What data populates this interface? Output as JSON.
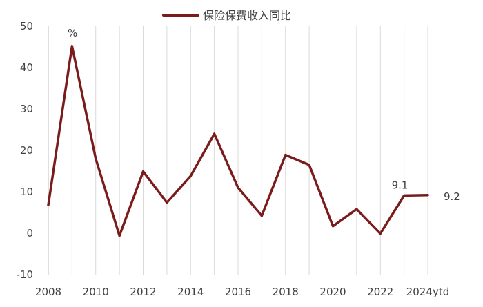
{
  "chart_data": {
    "type": "line",
    "title": "",
    "xlabel": "",
    "ylabel": "",
    "unit_label": "%",
    "legend_position": "top-center",
    "grid": "vertical",
    "ylim": [
      -10,
      50
    ],
    "y_ticks": [
      -10,
      0,
      10,
      20,
      30,
      40,
      50
    ],
    "x": [
      "2008",
      "2009",
      "2010",
      "2011",
      "2012",
      "2013",
      "2014",
      "2015",
      "2016",
      "2017",
      "2018",
      "2019",
      "2020",
      "2021",
      "2022",
      "2023",
      "2024ytd"
    ],
    "x_tick_labels": [
      "2008",
      "",
      "2010",
      "",
      "2012",
      "",
      "2014",
      "",
      "2016",
      "",
      "2018",
      "",
      "2020",
      "",
      "2022",
      "",
      "2024ytd"
    ],
    "series": [
      {
        "name": "保险保费收入同比",
        "color": "#7b1c1c",
        "values": [
          6.8,
          45.2,
          18.0,
          -0.6,
          14.9,
          7.4,
          13.8,
          24.0,
          11.0,
          4.2,
          18.9,
          16.5,
          1.7,
          5.8,
          -0.1,
          9.1,
          9.2
        ]
      }
    ],
    "data_labels": [
      {
        "x": "2023",
        "text": "9.1"
      },
      {
        "x": "2024ytd",
        "text": "9.2"
      }
    ]
  }
}
